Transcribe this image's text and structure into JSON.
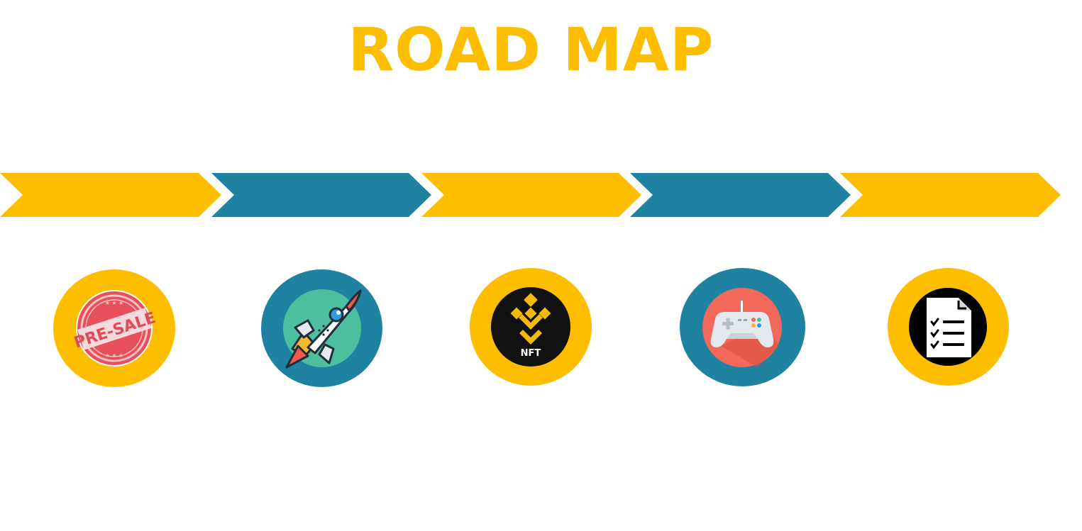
{
  "title": "ROAD MAP",
  "colors": {
    "yellow": "#FDBE00",
    "teal": "#1E82A0",
    "white": "#FFFFFF"
  },
  "arrows": [
    {
      "color": "yellow"
    },
    {
      "color": "teal"
    },
    {
      "color": "yellow"
    },
    {
      "color": "teal"
    },
    {
      "color": "yellow"
    }
  ],
  "milestones": [
    {
      "icon": "presale-stamp-icon",
      "ring": "yellow",
      "stamp_text": "PRE-SALE"
    },
    {
      "icon": "rocket-icon",
      "ring": "teal"
    },
    {
      "icon": "binance-nft-icon",
      "ring": "yellow",
      "badge_text": "NFT"
    },
    {
      "icon": "gamepad-icon",
      "ring": "teal"
    },
    {
      "icon": "checklist-document-icon",
      "ring": "yellow"
    }
  ]
}
